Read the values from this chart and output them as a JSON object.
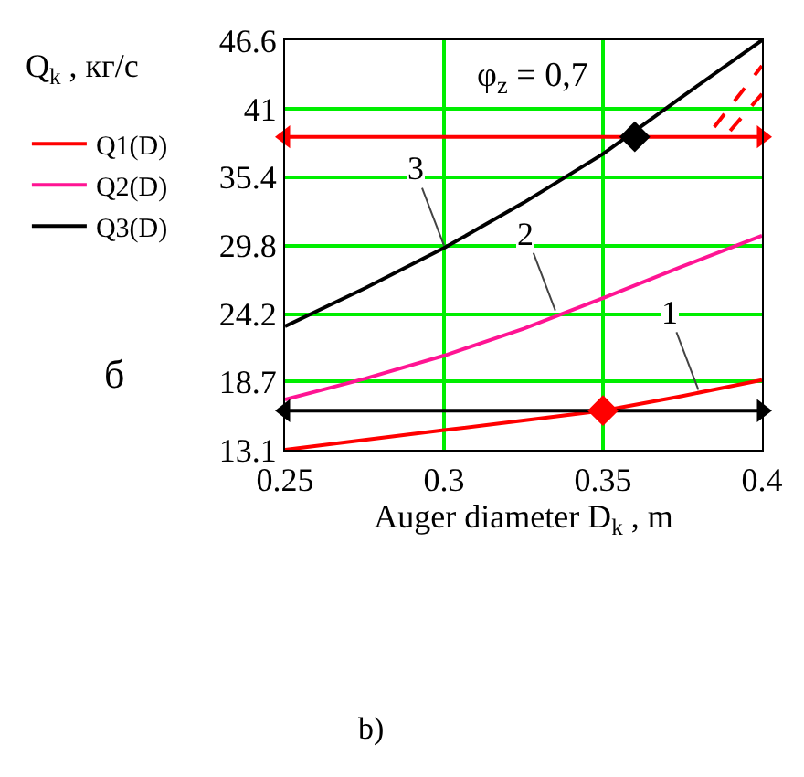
{
  "chart_data": {
    "type": "line",
    "ylabel": "Q$_{k}$ , кг/с",
    "xlabel": "Auger diameter D$_{k}$ , m",
    "x": [
      0.25,
      0.275,
      0.3,
      0.325,
      0.35,
      0.375,
      0.4
    ],
    "series": [
      {
        "name": "Q1(D)",
        "color": "#ff0000",
        "values": [
          13.1,
          13.9,
          14.7,
          15.5,
          16.3,
          17.5,
          18.8
        ]
      },
      {
        "name": "Q2(D)",
        "color": "#ff1493",
        "values": [
          17.2,
          18.9,
          20.8,
          23.0,
          25.5,
          28.1,
          30.6
        ]
      },
      {
        "name": "Q3(D)",
        "color": "#000000",
        "values": [
          23.2,
          26.3,
          29.6,
          33.3,
          37.3,
          42.0,
          46.6
        ]
      },
      {
        "type": "line",
        "line_style": "dashed",
        "color": "#ff0000",
        "x": [
          0.385,
          0.4
        ],
        "values": [
          39.5,
          44.5
        ]
      },
      {
        "type": "line",
        "line_style": "dashed",
        "color": "#ff0000",
        "x": [
          0.39,
          0.4
        ],
        "values": [
          39.2,
          42.2
        ]
      },
      {
        "type": "line",
        "marker": "triangle",
        "color": "#ff0000",
        "x": [
          0.25,
          0.4
        ],
        "values": [
          38.7,
          38.7
        ]
      },
      {
        "type": "line",
        "marker": "triangle",
        "color": "#000000",
        "x": [
          0.25,
          0.4
        ],
        "values": [
          16.3,
          16.3
        ]
      },
      {
        "type": "scatter",
        "marker": "diamond",
        "color": "#000000",
        "x": [
          0.36
        ],
        "values": [
          38.7
        ]
      },
      {
        "type": "scatter",
        "marker": "diamond",
        "color": "#ff0000",
        "x": [
          0.35
        ],
        "values": [
          16.3
        ]
      }
    ],
    "xlim": [
      0.25,
      0.4
    ],
    "xticks": [
      0.25,
      0.3,
      0.35,
      0.4
    ],
    "ylim": [
      13.1,
      46.6
    ],
    "yticks": [
      13.1,
      18.7,
      24.2,
      29.8,
      35.4,
      41,
      46.6
    ],
    "grid": true,
    "legend": "left",
    "marker": "none",
    "line_style": "solid",
    "annotations": [
      "φ$_{z}$ = 0,7",
      {
        "text": "1",
        "x": 0.38,
        "y": 18.0
      },
      {
        "text": "2",
        "x": 0.335,
        "y": 24.5
      },
      {
        "text": "3",
        "x": 0.3,
        "y": 29.8
      },
      "б",
      "b)"
    ]
  }
}
